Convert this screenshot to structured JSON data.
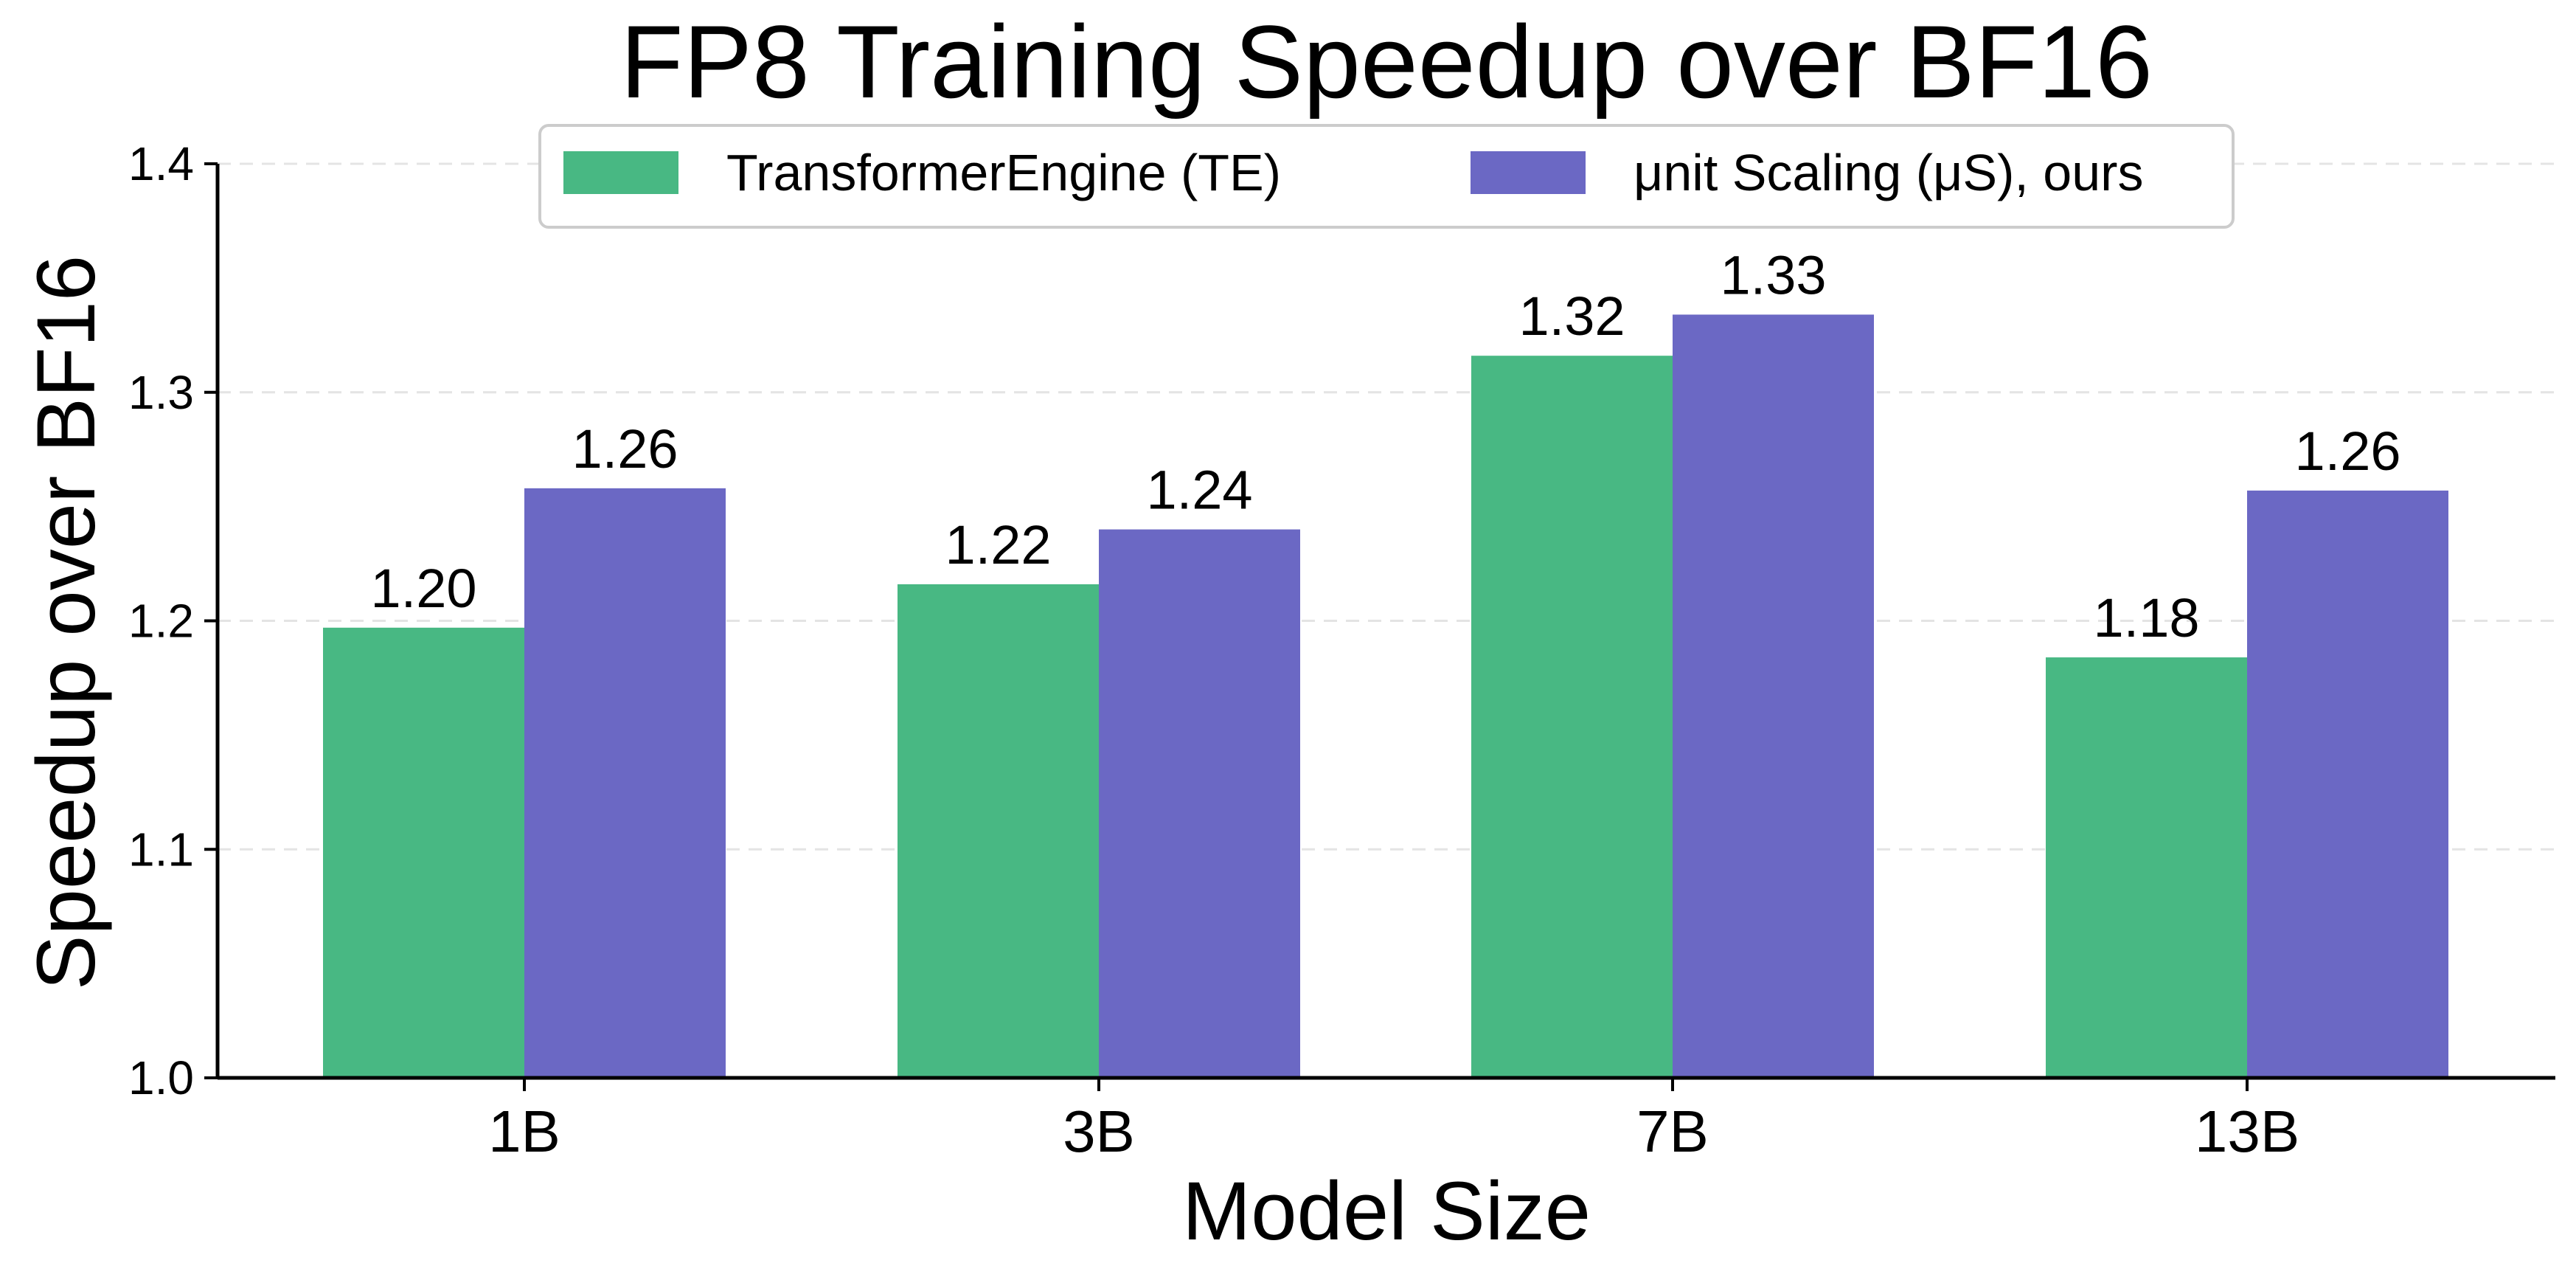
{
  "chart_data": {
    "type": "bar",
    "title": "FP8 Training Speedup over BF16",
    "xlabel": "Model Size",
    "ylabel": "Speedup over BF16",
    "categories": [
      "1B",
      "3B",
      "7B",
      "13B"
    ],
    "series": [
      {
        "name": "TransformerEngine (TE)",
        "color": "#48b883",
        "values": [
          1.197,
          1.216,
          1.316,
          1.184
        ],
        "labels": [
          "1.20",
          "1.22",
          "1.32",
          "1.18"
        ]
      },
      {
        "name": "μnit Scaling (μS), ours",
        "color": "#6b68c4",
        "values": [
          1.258,
          1.24,
          1.334,
          1.257
        ],
        "labels": [
          "1.26",
          "1.24",
          "1.33",
          "1.26"
        ]
      }
    ],
    "ylim": [
      1.0,
      1.4
    ],
    "yticks": [
      1.0,
      1.1,
      1.2,
      1.3,
      1.4
    ],
    "ytick_labels": [
      "1.0",
      "1.1",
      "1.2",
      "1.3",
      "1.4"
    ],
    "grid": "y-dashed",
    "legend_position": "top-center"
  }
}
